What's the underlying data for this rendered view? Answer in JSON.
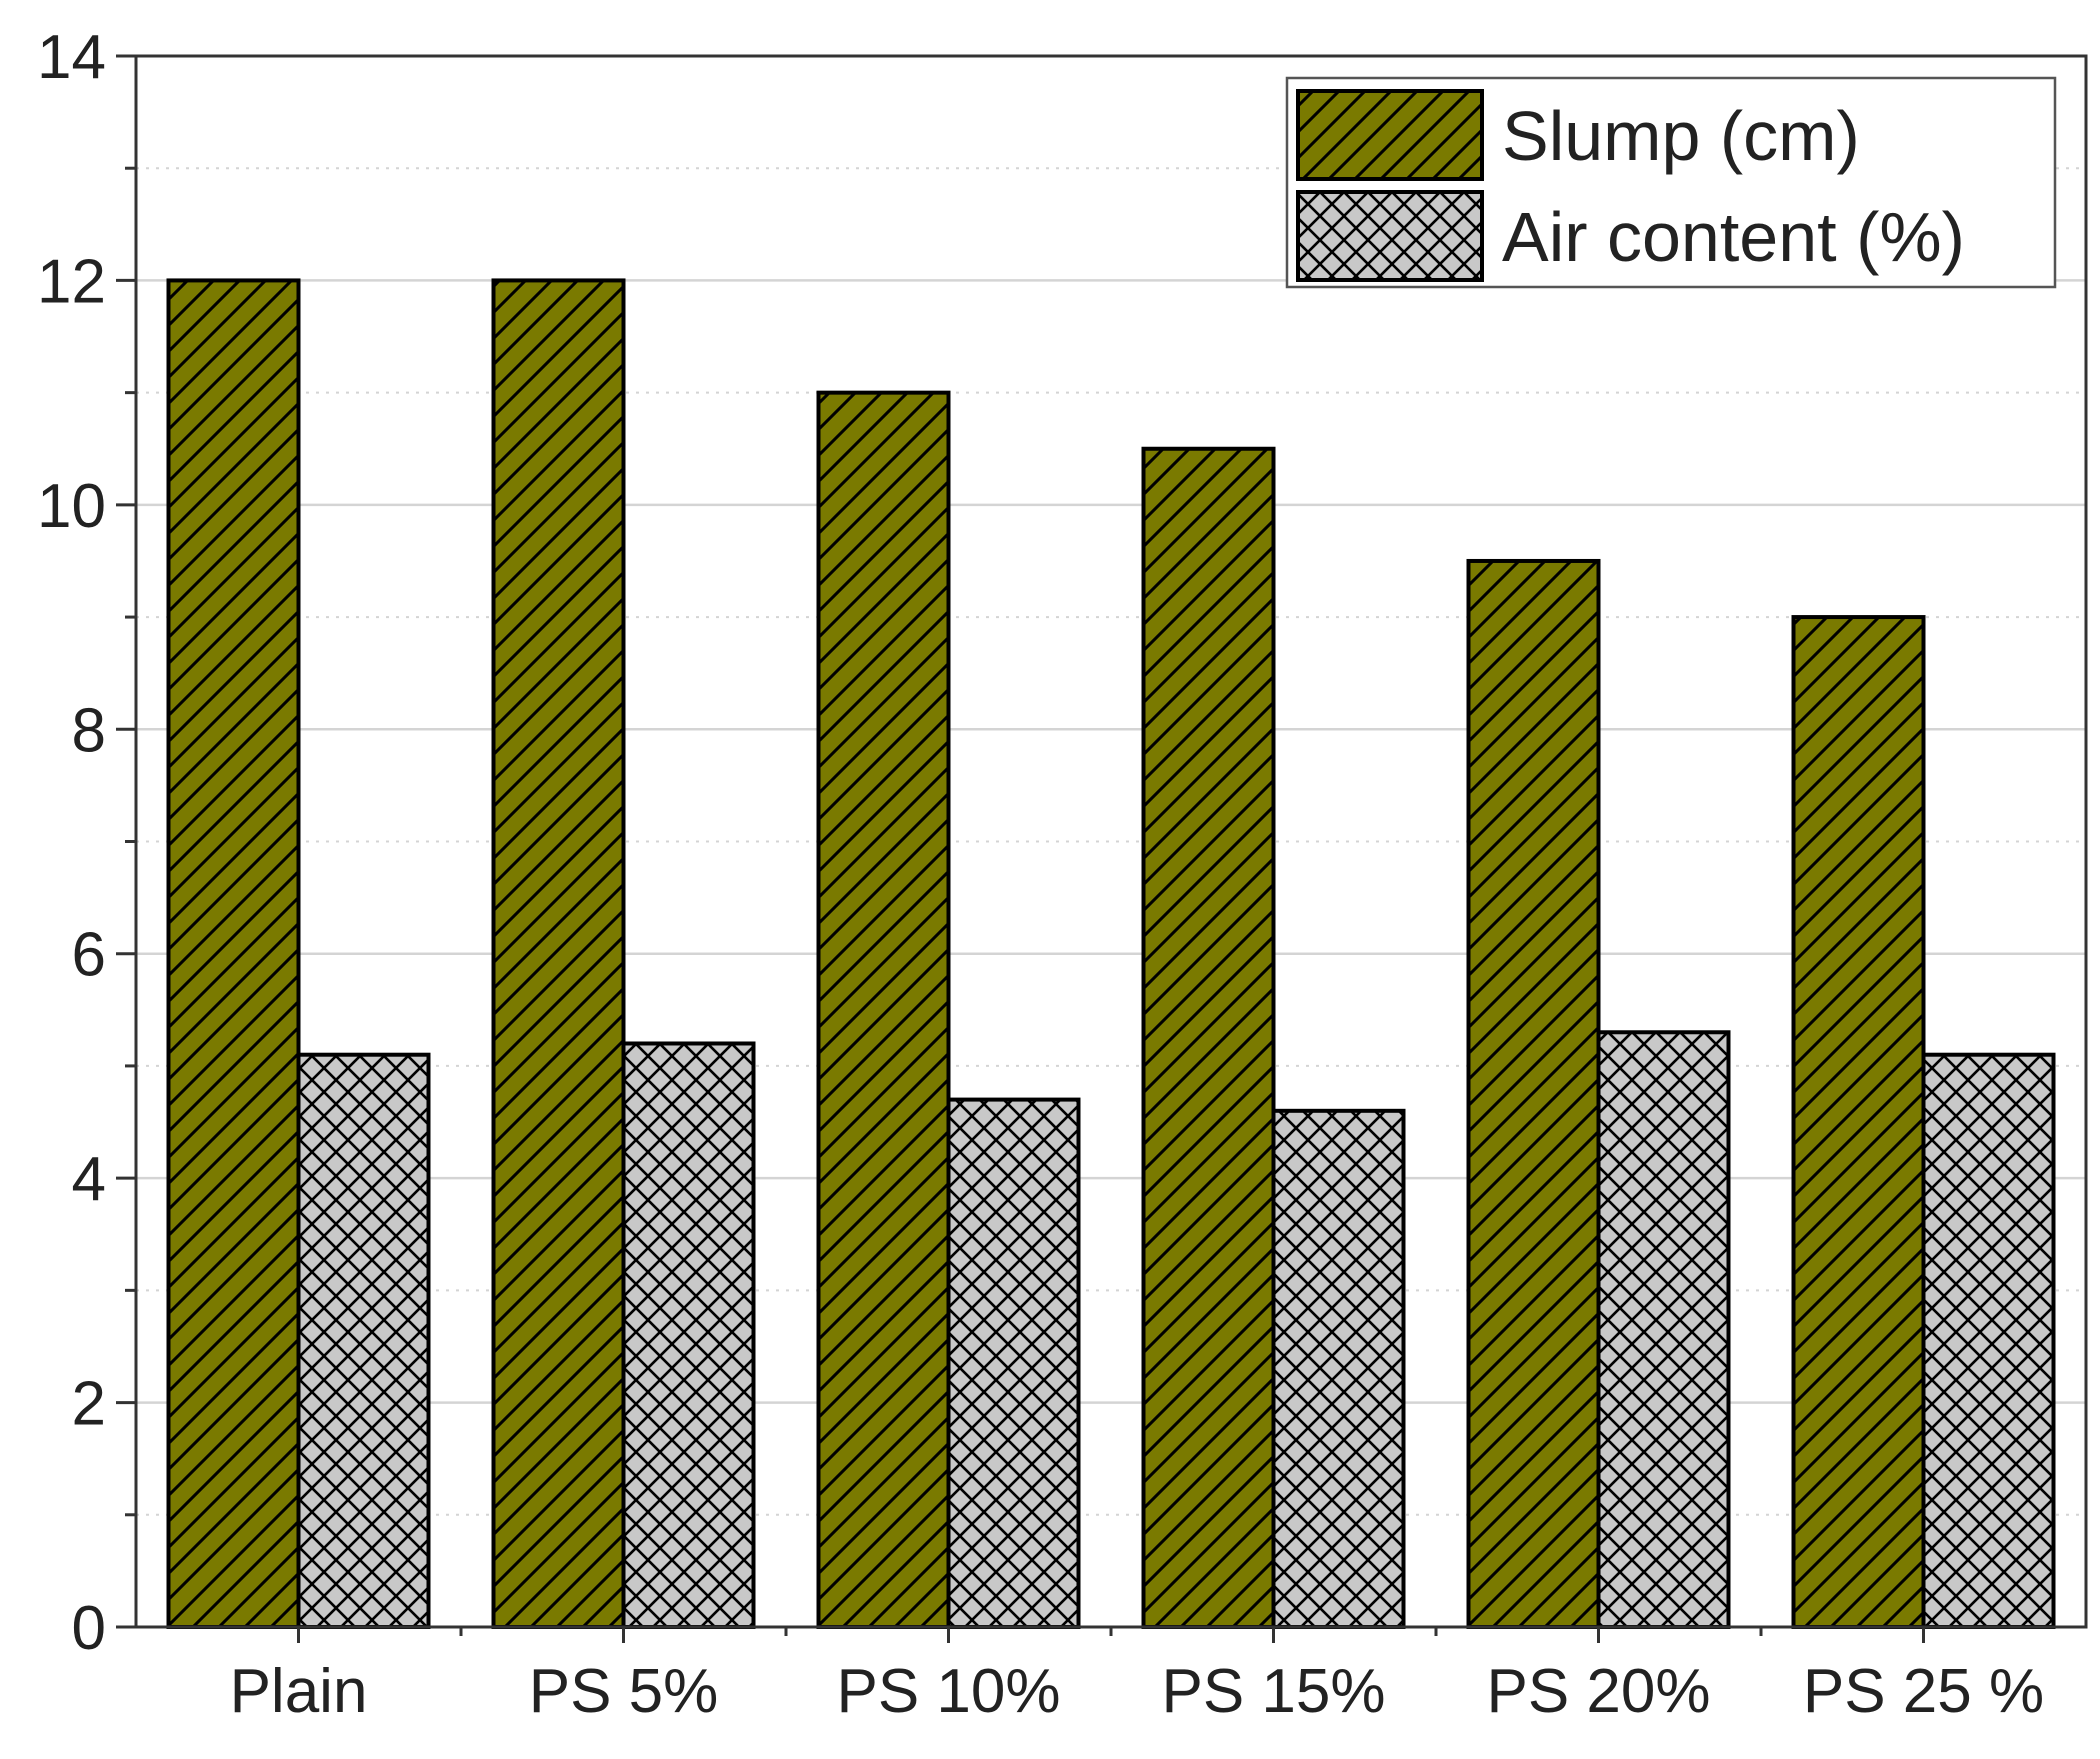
{
  "chart_data": {
    "type": "bar",
    "title": "",
    "xlabel": "",
    "ylabel": "",
    "categories": [
      "Plain",
      "PS 5%",
      "PS 10%",
      "PS 15%",
      "PS 20%",
      "PS 25 %"
    ],
    "series": [
      {
        "name": "Slump (cm)",
        "values": [
          12,
          12,
          11,
          10.5,
          9.5,
          9
        ],
        "color": "#7a7a00",
        "pattern": "diagonal-hatch"
      },
      {
        "name": "Air content (%)",
        "values": [
          5.1,
          5.2,
          4.7,
          4.6,
          5.3,
          5.1
        ],
        "color": "#c8c8c8",
        "pattern": "cross-hatch"
      }
    ],
    "ylim": [
      0,
      14
    ],
    "yticks": [
      0,
      2,
      4,
      6,
      8,
      10,
      12,
      14
    ],
    "yminor_step": 1,
    "grid": true,
    "legend_position": "top-right"
  }
}
